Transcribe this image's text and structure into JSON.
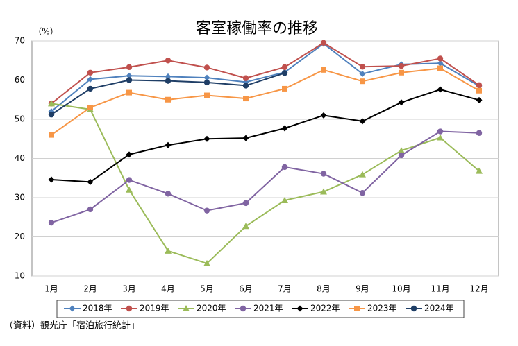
{
  "chart_data": {
    "type": "line",
    "title": "客室稼働率の推移",
    "y_label": "（%）",
    "source": "（資料）観光庁「宿泊旅行統計」",
    "categories": [
      "1月",
      "2月",
      "3月",
      "4月",
      "5月",
      "6月",
      "7月",
      "8月",
      "9月",
      "10月",
      "11月",
      "12月"
    ],
    "series": [
      {
        "name": "2018年",
        "color": "#4f81bd",
        "marker": "diamond",
        "values": [
          52,
          60.2,
          61.1,
          60.9,
          60.6,
          59.5,
          62,
          69.3,
          61.6,
          64,
          64.3,
          58.5
        ]
      },
      {
        "name": "2019年",
        "color": "#c0504d",
        "marker": "circle",
        "values": [
          54,
          61.9,
          63.3,
          65,
          63.2,
          60.5,
          63.3,
          69.5,
          63.4,
          63.6,
          65.5,
          58.7
        ]
      },
      {
        "name": "2020年",
        "color": "#9bbb59",
        "marker": "triangle",
        "values": [
          54,
          52.5,
          32,
          16.4,
          13.2,
          22.7,
          29.3,
          31.5,
          35.9,
          42,
          45.3,
          36.8
        ]
      },
      {
        "name": "2021年",
        "color": "#8064a2",
        "marker": "circle",
        "values": [
          23.6,
          27,
          34.5,
          31,
          26.7,
          28.6,
          37.8,
          36.1,
          31.2,
          40.8,
          46.9,
          46.5
        ]
      },
      {
        "name": "2022年",
        "color": "#000000",
        "marker": "diamond",
        "values": [
          34.6,
          34,
          41,
          43.4,
          45,
          45.2,
          47.7,
          51,
          49.5,
          54.3,
          57.6,
          54.9
        ]
      },
      {
        "name": "2023年",
        "color": "#f79646",
        "marker": "square",
        "values": [
          46,
          53,
          56.8,
          55,
          56.1,
          55.3,
          57.8,
          62.6,
          59.7,
          61.9,
          63,
          57.3
        ]
      },
      {
        "name": "2024年",
        "color": "#1f3e66",
        "marker": "circle",
        "values": [
          51.2,
          57.8,
          60,
          59.8,
          59.4,
          58.6,
          61.8,
          null,
          null,
          null,
          null,
          null
        ]
      }
    ],
    "ylim": [
      10,
      70
    ],
    "yticks": [
      10,
      20,
      30,
      40,
      50,
      60,
      70
    ],
    "grid": true
  }
}
